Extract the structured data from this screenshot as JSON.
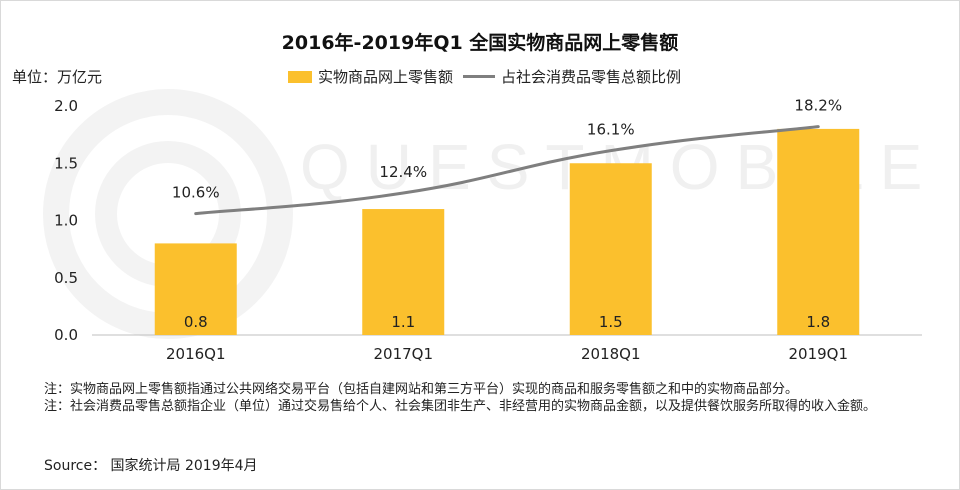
{
  "title": "2016年-2019年Q1 全国实物商品网上零售额",
  "unit_label": "单位：万亿元",
  "watermark": "QUESTMOBILE",
  "legend": {
    "bar": "实物商品网上零售额",
    "line": "占社会消费品零售总额比例"
  },
  "colors": {
    "bar": "#FBC02D",
    "line": "#7f7f7f",
    "axis": "#bfbfbf"
  },
  "chart_data": {
    "type": "bar",
    "categories": [
      "2016Q1",
      "2017Q1",
      "2018Q1",
      "2019Q1"
    ],
    "series": [
      {
        "name": "实物商品网上零售额",
        "type": "bar",
        "values": [
          0.8,
          1.1,
          1.5,
          1.8
        ],
        "labels": [
          "0.8",
          "1.1",
          "1.5",
          "1.8"
        ]
      },
      {
        "name": "占社会消费品零售总额比例",
        "type": "line",
        "values": [
          10.6,
          12.4,
          16.1,
          18.2
        ],
        "labels": [
          "10.6%",
          "12.4%",
          "16.1%",
          "18.2%"
        ]
      }
    ],
    "ylim": [
      0,
      2.0
    ],
    "yticks": [
      "0.0",
      "0.5",
      "1.0",
      "1.5",
      "2.0"
    ],
    "y2lim": [
      0,
      20
    ],
    "legend_position": "top"
  },
  "notes": [
    "注：实物商品网上零售额指通过公共网络交易平台（包括自建网站和第三方平台）实现的商品和服务零售额之和中的实物商品部分。",
    "注：社会消费品零售总额指企业（单位）通过交易售给个人、社会集团非生产、非经营用的实物商品金额，以及提供餐饮服务所取得的收入金额。"
  ],
  "source": "Source： 国家统计局 2019年4月"
}
